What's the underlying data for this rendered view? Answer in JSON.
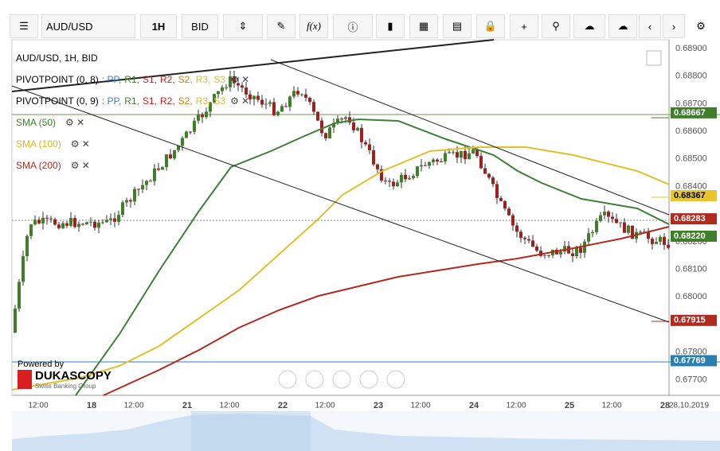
{
  "toolbar": {
    "instrument": "AUD/USD",
    "timeframe": "1H",
    "side": "BID",
    "formula": "f(x)"
  },
  "legend": {
    "title": "AUD/USD, 1H, BID",
    "pivots": [
      {
        "name": "PIVOTPOINT (0, 8)",
        "items": [
          ": PP,",
          "R1,",
          "S1,",
          "R2,",
          "S2,",
          "R3,",
          "S3"
        ]
      },
      {
        "name": "PIVOTPOINT (0, 9)",
        "items": [
          ": PP,",
          "R1,",
          "S1,",
          "R2,",
          "S2,",
          "R3,",
          "S3"
        ]
      }
    ],
    "sma": [
      "SMA (50)",
      "SMA (100)",
      "SMA (200)"
    ]
  },
  "price_axis": [
    "0.68900",
    "0.68800",
    "0.68700",
    "0.68600",
    "0.68500",
    "0.68400",
    "0.68200",
    "0.68100",
    "0.68000",
    "0.67800",
    "0.67700"
  ],
  "price_tags": [
    {
      "label": "0.68667",
      "color": "#3f7f2a"
    },
    {
      "label": "0.68367",
      "color": "#e8c62a"
    },
    {
      "label": "0.68283",
      "color": "#b22a1e"
    },
    {
      "label": "0.68220",
      "color": "#3f7f2a"
    },
    {
      "label": "0.67915",
      "color": "#b22a1e"
    },
    {
      "label": "0.67769",
      "color": "#2a7fb2"
    }
  ],
  "time_axis": [
    "12:00",
    "18",
    "12:00",
    "21",
    "12:00",
    "22",
    "12:00",
    "23",
    "12:00",
    "24",
    "12:00",
    "25",
    "12:00",
    "28",
    "28.10.2019"
  ],
  "branding": {
    "powered": "Powered by",
    "name": "DUKASCOPY",
    "tagline": "Swiss Banking Group"
  }
}
